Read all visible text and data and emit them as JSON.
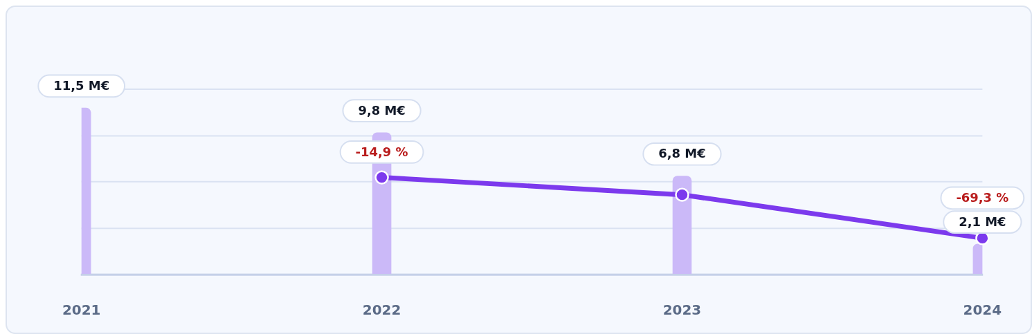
{
  "chart_data": {
    "type": "bar",
    "categories": [
      "2021",
      "2022",
      "2023",
      "2024"
    ],
    "series": [
      {
        "type": "bar",
        "color": "#cbb9f8",
        "values": [
          11.5,
          9.8,
          6.8,
          2.1
        ],
        "value_labels": [
          "11,5 M€",
          "9,8 M€",
          "6,8 M€",
          "2,1 M€"
        ]
      },
      {
        "type": "line",
        "color": "#7c3aed",
        "values": [
          null,
          6.7,
          5.5,
          2.5
        ]
      }
    ],
    "annotations": [
      {
        "text": "-14,9 %",
        "x": "2022",
        "y": 6.7
      },
      {
        "text": "-69,3 %",
        "x": "2024",
        "y": 2.5
      }
    ],
    "ylim": [
      0,
      12.8
    ],
    "yticks": [
      {
        "value": 0,
        "label": null
      },
      {
        "value": 3.2,
        "label": null
      },
      {
        "value": 6.4,
        "label": null
      },
      {
        "value": 9.6,
        "label": null
      },
      {
        "value": 12.8,
        "label": null
      }
    ],
    "grid": "y",
    "tick_labels": "x",
    "marker": "circle",
    "line_style": "solid"
  }
}
